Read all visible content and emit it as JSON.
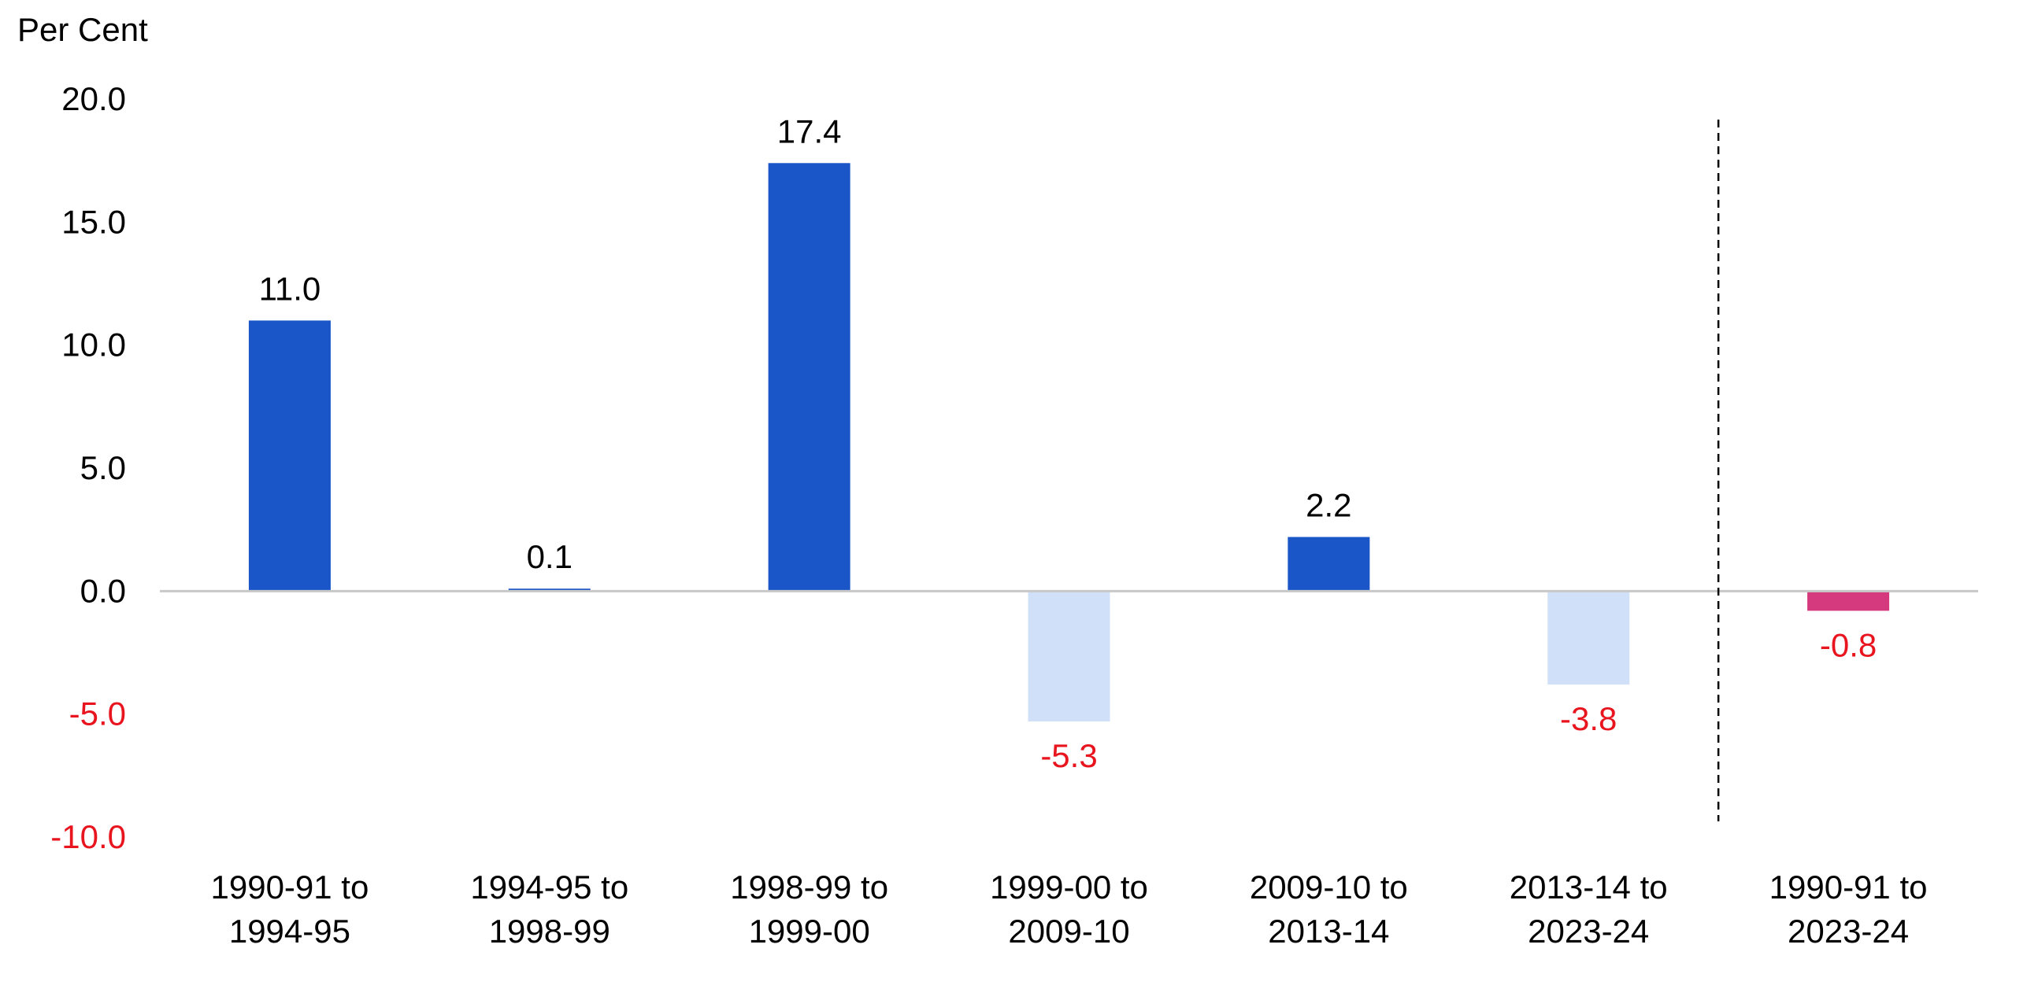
{
  "chart_data": {
    "type": "bar",
    "ylabel": "Per Cent",
    "ylim": [
      -10,
      20
    ],
    "yticks": [
      20,
      15,
      10,
      5,
      0,
      -5,
      -10
    ],
    "ytick_labels": [
      "20.0",
      "15.0",
      "10.0",
      "5.0",
      "0.0",
      "-5.0",
      "-10.0"
    ],
    "categories": [
      [
        "1990-91 to",
        "1994-95"
      ],
      [
        "1994-95 to",
        "1998-99"
      ],
      [
        "1998-99 to",
        "1999-00"
      ],
      [
        "1999-00 to",
        "2009-10"
      ],
      [
        "2009-10 to",
        "2013-14"
      ],
      [
        "2013-14 to",
        "2023-24"
      ],
      [
        "1990-91 to",
        "2023-24"
      ]
    ],
    "values": [
      11.0,
      0.1,
      17.4,
      -5.3,
      2.2,
      -3.8,
      -0.8
    ],
    "data_labels": [
      "11.0",
      "0.1",
      "17.4",
      "-5.3",
      "2.2",
      "-3.8",
      "-0.8"
    ],
    "bar_colors": [
      "#1a56c8",
      "#1a56c8",
      "#1a56c8",
      "#d0e0f8",
      "#1a56c8",
      "#d0e0f8",
      "#d63a7e"
    ],
    "positive_label_color": "#000000",
    "negative_label_color": "#e8141e",
    "axis_line_color": "#c8c8c8",
    "divider": "dashed vertical line between the sixth and seventh categories",
    "grid": false,
    "legend": "none"
  }
}
